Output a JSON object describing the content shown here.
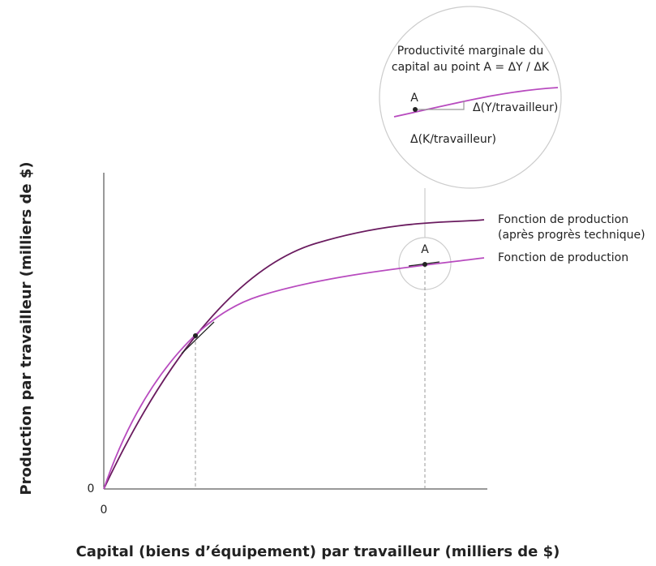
{
  "zoom": {
    "title_line1": "Productivité marginale du",
    "title_line2": "capital au point A = ΔY / ΔK",
    "point_label": "A",
    "dy_label": "Δ(Y/travailleur)",
    "dx_label": "Δ(K/travailleur)"
  },
  "curves": {
    "upper_line1": "Fonction de production",
    "upper_line2": "(après progrès technique)",
    "lower": "Fonction de production"
  },
  "point_label": "A",
  "axes": {
    "x_label": "Capital (biens d’équipement) par travailleur (milliers de $)",
    "y_label": "Production par travailleur (milliers de $)",
    "x_origin": "0",
    "y_origin": "0"
  }
}
